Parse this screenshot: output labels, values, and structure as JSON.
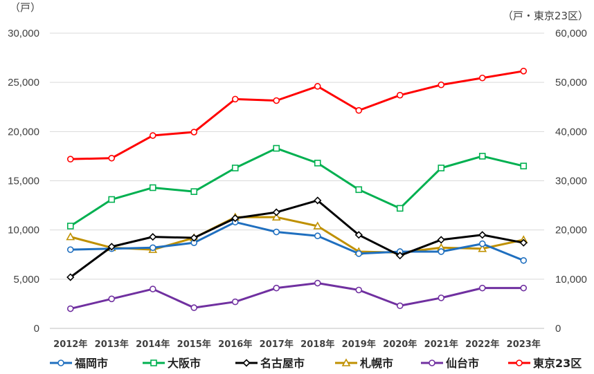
{
  "chart_data": {
    "type": "line",
    "left_axis_unit": "（戸）",
    "right_axis_unit": "（戸・東京23区）",
    "categories": [
      "2012年",
      "2013年",
      "2014年",
      "2015年",
      "2016年",
      "2017年",
      "2018年",
      "2019年",
      "2020年",
      "2021年",
      "2022年",
      "2023年"
    ],
    "left_ylim": [
      0,
      30000
    ],
    "right_ylim": [
      0,
      60000
    ],
    "left_ticks": [
      "0",
      "5,000",
      "10,000",
      "15,000",
      "20,000",
      "25,000",
      "30,000"
    ],
    "right_ticks": [
      "0",
      "10,000",
      "20,000",
      "30,000",
      "40,000",
      "50,000",
      "60,000"
    ],
    "grid": true,
    "legend_position": "bottom",
    "series": [
      {
        "name": "福岡市",
        "color": "#1f6fbf",
        "marker": "circle",
        "axis": "left",
        "values": [
          8000,
          8100,
          8200,
          8700,
          10800,
          9800,
          9400,
          7600,
          7800,
          7800,
          8600,
          6900
        ]
      },
      {
        "name": "大阪市",
        "color": "#00b050",
        "marker": "square",
        "axis": "left",
        "values": [
          10400,
          13100,
          14300,
          13900,
          16300,
          18300,
          16800,
          14100,
          12200,
          16300,
          17500,
          16500
        ]
      },
      {
        "name": "名古屋市",
        "color": "#000000",
        "marker": "diamond",
        "axis": "left",
        "values": [
          5200,
          8300,
          9300,
          9200,
          11200,
          11800,
          13000,
          9500,
          7400,
          9000,
          9500,
          8700
        ]
      },
      {
        "name": "札幌市",
        "color": "#bf9000",
        "marker": "triangle",
        "axis": "left",
        "values": [
          9300,
          8200,
          8000,
          9200,
          11300,
          11300,
          10400,
          7800,
          7700,
          8200,
          8100,
          9000
        ]
      },
      {
        "name": "仙台市",
        "color": "#7030a0",
        "marker": "circle",
        "axis": "left",
        "values": [
          2000,
          3000,
          4000,
          2100,
          2700,
          4100,
          4600,
          3900,
          2300,
          3100,
          4100,
          4100
        ]
      },
      {
        "name": "東京23区",
        "color": "#ff0000",
        "marker": "circle",
        "axis": "right",
        "values": [
          34400,
          34600,
          39200,
          39900,
          46600,
          46300,
          49200,
          44300,
          47400,
          49500,
          50900,
          52300
        ]
      }
    ]
  }
}
